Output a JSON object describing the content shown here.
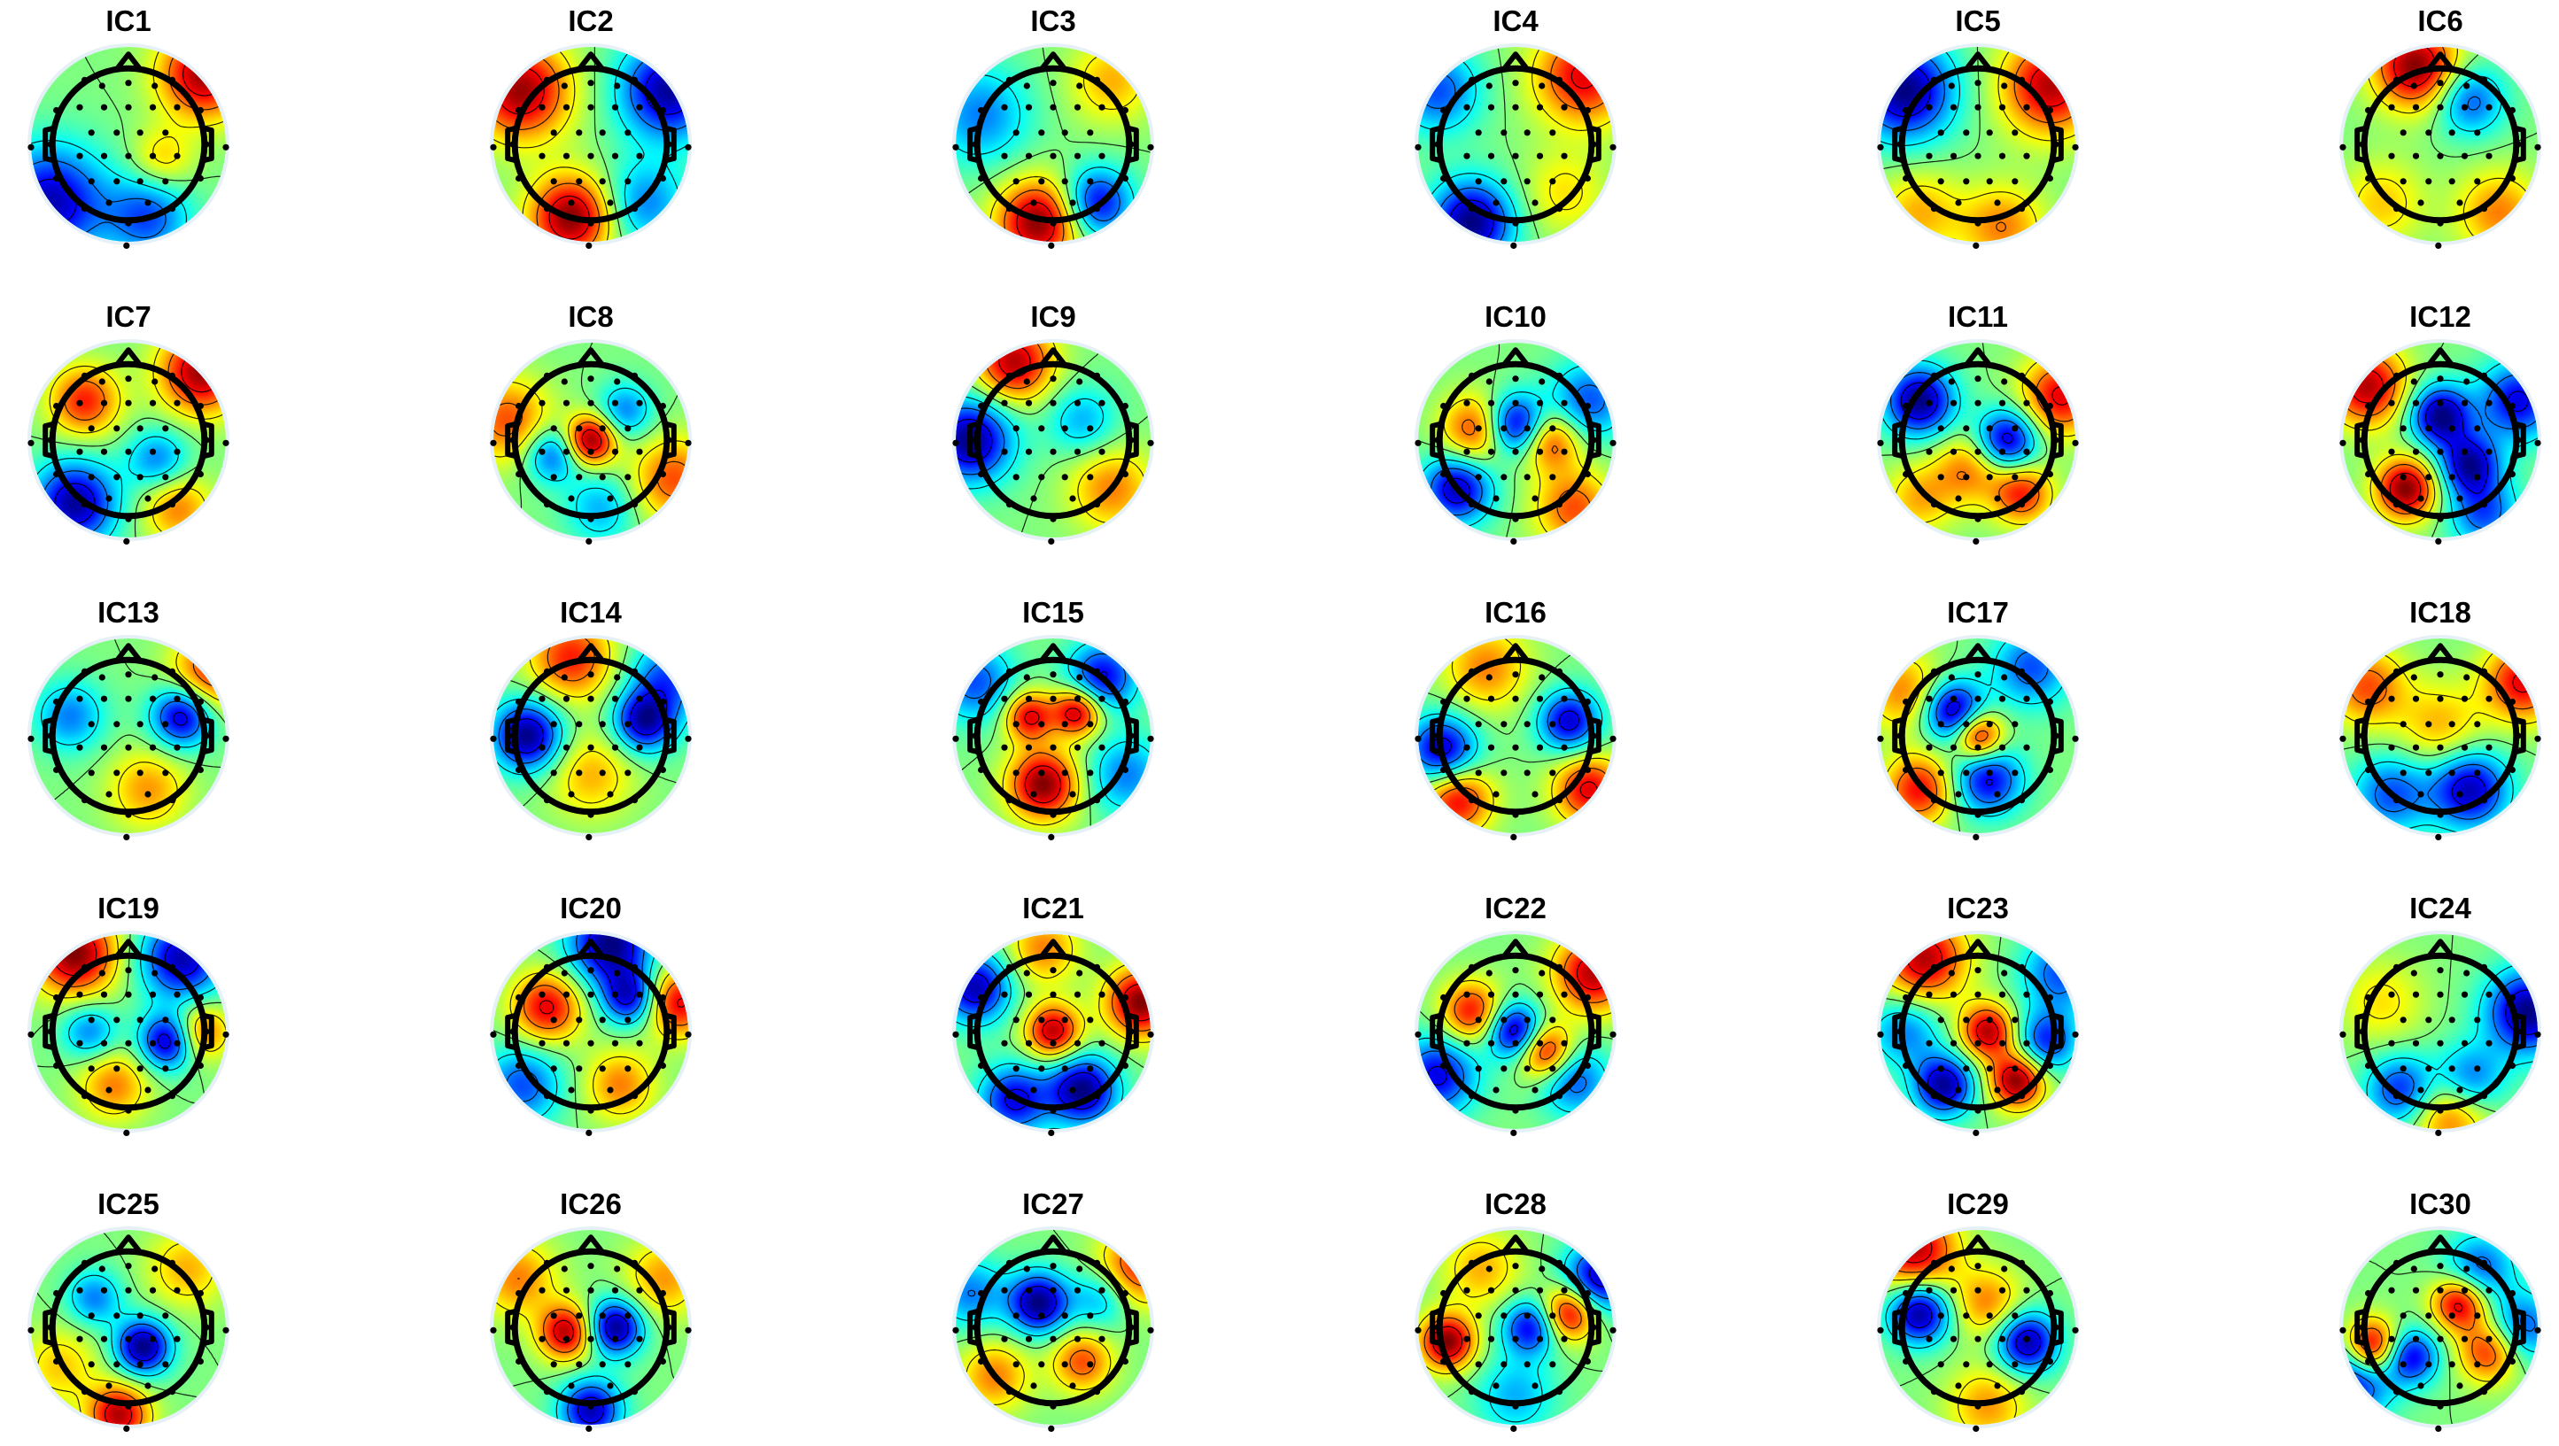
{
  "figure": {
    "components": [
      {
        "label": "IC1",
        "blobs": [
          [
            0.78,
            -0.72,
            0.95,
            0.32
          ],
          [
            0.35,
            0.15,
            0.35,
            0.22
          ],
          [
            -0.8,
            0.6,
            -0.9,
            0.4
          ],
          [
            0.2,
            0.75,
            -0.6,
            0.3
          ]
        ]
      },
      {
        "label": "IC2",
        "blobs": [
          [
            -0.72,
            -0.55,
            0.95,
            0.35
          ],
          [
            -0.2,
            0.75,
            1.0,
            0.3
          ],
          [
            0.8,
            -0.55,
            -0.95,
            0.35
          ],
          [
            0.55,
            0.6,
            -0.5,
            0.3
          ]
        ]
      },
      {
        "label": "IC3",
        "blobs": [
          [
            -0.15,
            0.8,
            1.0,
            0.3
          ],
          [
            0.45,
            0.6,
            -0.8,
            0.25
          ],
          [
            -0.75,
            -0.3,
            -0.5,
            0.35
          ],
          [
            0.6,
            -0.65,
            0.4,
            0.3
          ]
        ]
      },
      {
        "label": "IC4",
        "blobs": [
          [
            -0.45,
            0.8,
            -1.0,
            0.3
          ],
          [
            0.7,
            -0.7,
            0.8,
            0.35
          ],
          [
            -0.8,
            -0.55,
            -0.6,
            0.3
          ],
          [
            0.5,
            0.5,
            0.3,
            0.3
          ]
        ]
      },
      {
        "label": "IC5",
        "blobs": [
          [
            -0.75,
            -0.55,
            -1.0,
            0.35
          ],
          [
            0.75,
            -0.6,
            0.9,
            0.35
          ],
          [
            0.25,
            0.85,
            0.5,
            0.3
          ],
          [
            -0.6,
            0.7,
            0.4,
            0.3
          ]
        ]
      },
      {
        "label": "IC6",
        "blobs": [
          [
            -0.25,
            -0.8,
            1.0,
            0.3
          ],
          [
            0.3,
            -0.45,
            -0.6,
            0.25
          ],
          [
            0.6,
            0.7,
            0.5,
            0.3
          ],
          [
            -0.6,
            0.6,
            0.35,
            0.3
          ]
        ]
      },
      {
        "label": "IC7",
        "blobs": [
          [
            0.75,
            -0.7,
            0.95,
            0.3
          ],
          [
            -0.45,
            -0.4,
            0.7,
            0.25
          ],
          [
            -0.55,
            0.65,
            -0.95,
            0.3
          ],
          [
            0.3,
            0.2,
            -0.5,
            0.22
          ],
          [
            0.5,
            0.7,
            0.5,
            0.25
          ]
        ]
      },
      {
        "label": "IC8",
        "blobs": [
          [
            0.0,
            0.0,
            1.0,
            0.18
          ],
          [
            -0.4,
            0.15,
            -0.6,
            0.2
          ],
          [
            0.35,
            -0.3,
            -0.5,
            0.2
          ],
          [
            0.85,
            0.4,
            0.6,
            0.3
          ],
          [
            -0.85,
            -0.2,
            0.6,
            0.3
          ],
          [
            0.1,
            0.7,
            -0.4,
            0.25
          ]
        ]
      },
      {
        "label": "IC9",
        "blobs": [
          [
            -0.85,
            0.0,
            -1.0,
            0.3
          ],
          [
            -0.4,
            -0.8,
            0.9,
            0.28
          ],
          [
            0.6,
            0.5,
            0.5,
            0.3
          ],
          [
            0.3,
            -0.2,
            -0.4,
            0.25
          ]
        ]
      },
      {
        "label": "IC10",
        "blobs": [
          [
            0.0,
            -0.15,
            -1.0,
            0.22
          ],
          [
            -0.6,
            0.5,
            -0.9,
            0.25
          ],
          [
            -0.4,
            -0.1,
            0.7,
            0.25
          ],
          [
            0.35,
            0.0,
            0.7,
            0.22
          ],
          [
            0.75,
            -0.4,
            -0.6,
            0.28
          ],
          [
            0.6,
            0.7,
            0.6,
            0.28
          ]
        ]
      },
      {
        "label": "IC11",
        "blobs": [
          [
            -0.6,
            -0.4,
            -1.0,
            0.25
          ],
          [
            0.3,
            0.0,
            -0.9,
            0.22
          ],
          [
            0.85,
            -0.45,
            0.8,
            0.28
          ],
          [
            -0.1,
            0.3,
            0.5,
            0.25
          ],
          [
            0.45,
            0.55,
            0.7,
            0.22
          ],
          [
            -0.6,
            0.6,
            0.4,
            0.25
          ]
        ]
      },
      {
        "label": "IC12",
        "blobs": [
          [
            0.0,
            -0.25,
            -1.0,
            0.22
          ],
          [
            0.3,
            0.25,
            -0.9,
            0.22
          ],
          [
            -0.35,
            0.5,
            1.0,
            0.22
          ],
          [
            -0.75,
            -0.55,
            0.9,
            0.28
          ],
          [
            0.8,
            -0.4,
            -0.8,
            0.28
          ],
          [
            0.45,
            0.75,
            -0.6,
            0.25
          ]
        ]
      },
      {
        "label": "IC13",
        "blobs": [
          [
            0.55,
            -0.2,
            -0.9,
            0.22
          ],
          [
            0.85,
            -0.65,
            0.7,
            0.28
          ],
          [
            -0.6,
            -0.2,
            -0.5,
            0.25
          ],
          [
            0.2,
            0.55,
            0.45,
            0.28
          ]
        ]
      },
      {
        "label": "IC14",
        "blobs": [
          [
            -0.65,
            0.0,
            -1.0,
            0.25
          ],
          [
            0.55,
            -0.15,
            -0.9,
            0.22
          ],
          [
            -0.2,
            -0.8,
            0.7,
            0.3
          ],
          [
            0.8,
            -0.6,
            -0.6,
            0.28
          ],
          [
            0.0,
            0.4,
            0.4,
            0.3
          ]
        ]
      },
      {
        "label": "IC15",
        "blobs": [
          [
            -0.1,
            0.5,
            1.0,
            0.25
          ],
          [
            0.25,
            -0.25,
            0.95,
            0.18
          ],
          [
            -0.25,
            -0.2,
            0.8,
            0.18
          ],
          [
            0.5,
            -0.6,
            -0.8,
            0.25
          ],
          [
            -0.8,
            -0.55,
            -0.6,
            0.28
          ],
          [
            0.75,
            0.4,
            -0.5,
            0.28
          ]
        ]
      },
      {
        "label": "IC16",
        "blobs": [
          [
            -0.75,
            0.15,
            -0.9,
            0.25
          ],
          [
            0.55,
            -0.15,
            -0.85,
            0.22
          ],
          [
            -0.6,
            0.65,
            0.8,
            0.25
          ],
          [
            0.75,
            0.55,
            0.8,
            0.25
          ],
          [
            -0.3,
            -0.7,
            0.5,
            0.3
          ]
        ]
      },
      {
        "label": "IC17",
        "blobs": [
          [
            -0.25,
            -0.25,
            -1.0,
            0.22
          ],
          [
            0.0,
            0.0,
            0.95,
            0.18
          ],
          [
            0.1,
            0.45,
            -0.8,
            0.25
          ],
          [
            -0.6,
            0.55,
            0.75,
            0.25
          ],
          [
            0.55,
            -0.7,
            -0.6,
            0.28
          ],
          [
            -0.75,
            -0.45,
            0.5,
            0.28
          ]
        ]
      },
      {
        "label": "IC18",
        "blobs": [
          [
            0.3,
            0.55,
            -0.9,
            0.28
          ],
          [
            -0.5,
            0.6,
            -0.6,
            0.28
          ],
          [
            0.85,
            -0.55,
            0.8,
            0.28
          ],
          [
            -0.75,
            -0.5,
            0.6,
            0.28
          ],
          [
            0.0,
            -0.1,
            0.4,
            0.3
          ]
        ]
      },
      {
        "label": "IC19",
        "blobs": [
          [
            -0.55,
            -0.8,
            1.0,
            0.3
          ],
          [
            0.55,
            -0.75,
            -0.9,
            0.3
          ],
          [
            0.4,
            0.1,
            -0.9,
            0.2
          ],
          [
            -0.4,
            0.0,
            -0.5,
            0.2
          ],
          [
            0.75,
            0.0,
            0.6,
            0.2
          ],
          [
            -0.15,
            0.55,
            0.5,
            0.25
          ]
        ]
      },
      {
        "label": "IC20",
        "blobs": [
          [
            0.2,
            -0.9,
            -1.0,
            0.3
          ],
          [
            -0.45,
            -0.25,
            0.8,
            0.25
          ],
          [
            0.4,
            -0.35,
            -0.8,
            0.2
          ],
          [
            0.9,
            -0.3,
            0.8,
            0.25
          ],
          [
            -0.7,
            0.55,
            -0.6,
            0.28
          ],
          [
            0.3,
            0.55,
            0.5,
            0.25
          ]
        ]
      },
      {
        "label": "IC21",
        "blobs": [
          [
            0.0,
            0.0,
            0.9,
            0.2
          ],
          [
            0.3,
            0.6,
            -1.0,
            0.25
          ],
          [
            -0.4,
            0.7,
            -0.8,
            0.25
          ],
          [
            0.9,
            -0.3,
            1.0,
            0.25
          ],
          [
            -0.8,
            -0.45,
            -0.9,
            0.25
          ],
          [
            -0.1,
            -0.85,
            0.5,
            0.25
          ]
        ]
      },
      {
        "label": "IC22",
        "blobs": [
          [
            0.0,
            0.0,
            -1.0,
            0.2
          ],
          [
            0.3,
            0.2,
            0.9,
            0.2
          ],
          [
            -0.45,
            -0.2,
            0.75,
            0.22
          ],
          [
            0.8,
            -0.6,
            0.9,
            0.28
          ],
          [
            -0.8,
            0.45,
            -0.8,
            0.28
          ],
          [
            0.6,
            0.5,
            -0.6,
            0.25
          ]
        ]
      },
      {
        "label": "IC23",
        "blobs": [
          [
            0.1,
            0.0,
            0.9,
            0.2
          ],
          [
            0.4,
            0.5,
            1.0,
            0.2
          ],
          [
            -0.35,
            0.55,
            -0.95,
            0.22
          ],
          [
            0.7,
            0.1,
            -0.7,
            0.22
          ],
          [
            -0.55,
            -0.75,
            0.9,
            0.3
          ],
          [
            0.85,
            -0.6,
            -0.6,
            0.28
          ],
          [
            -0.75,
            0.0,
            -0.5,
            0.25
          ]
        ]
      },
      {
        "label": "IC24",
        "blobs": [
          [
            0.9,
            -0.2,
            -1.0,
            0.3
          ],
          [
            -0.4,
            0.6,
            -0.7,
            0.25
          ],
          [
            0.3,
            0.5,
            -0.6,
            0.25
          ],
          [
            0.1,
            0.85,
            0.6,
            0.28
          ],
          [
            -0.6,
            -0.3,
            0.3,
            0.3
          ]
        ]
      },
      {
        "label": "IC25",
        "blobs": [
          [
            0.15,
            0.2,
            -1.0,
            0.2
          ],
          [
            -0.35,
            -0.3,
            -0.5,
            0.2
          ],
          [
            -0.1,
            0.9,
            0.9,
            0.22
          ],
          [
            0.6,
            -0.6,
            0.4,
            0.28
          ],
          [
            -0.7,
            0.4,
            0.35,
            0.28
          ]
        ]
      },
      {
        "label": "IC26",
        "blobs": [
          [
            0.25,
            0.0,
            -1.0,
            0.2
          ],
          [
            -0.25,
            0.05,
            0.9,
            0.2
          ],
          [
            0.0,
            0.85,
            -0.9,
            0.22
          ],
          [
            -0.75,
            -0.5,
            0.5,
            0.28
          ],
          [
            0.75,
            -0.5,
            0.45,
            0.28
          ]
        ]
      },
      {
        "label": "IC27",
        "blobs": [
          [
            -0.15,
            -0.25,
            -1.0,
            0.22
          ],
          [
            0.3,
            0.35,
            0.6,
            0.22
          ],
          [
            -0.6,
            0.5,
            0.5,
            0.25
          ],
          [
            0.85,
            -0.6,
            0.7,
            0.28
          ],
          [
            -0.85,
            -0.35,
            -0.5,
            0.25
          ],
          [
            0.5,
            -0.3,
            -0.45,
            0.22
          ]
        ]
      },
      {
        "label": "IC28",
        "blobs": [
          [
            -0.7,
            0.15,
            1.0,
            0.2
          ],
          [
            0.55,
            -0.15,
            0.9,
            0.2
          ],
          [
            0.85,
            -0.5,
            -0.9,
            0.25
          ],
          [
            0.15,
            0.0,
            -0.8,
            0.2
          ],
          [
            0.0,
            0.7,
            -0.4,
            0.28
          ],
          [
            -0.35,
            -0.6,
            0.4,
            0.28
          ]
        ]
      },
      {
        "label": "IC29",
        "blobs": [
          [
            -0.6,
            -0.15,
            -1.0,
            0.22
          ],
          [
            0.5,
            0.15,
            -0.95,
            0.22
          ],
          [
            -0.65,
            -0.8,
            0.9,
            0.3
          ],
          [
            0.1,
            -0.25,
            0.5,
            0.25
          ],
          [
            0.1,
            0.8,
            0.45,
            0.28
          ]
        ]
      },
      {
        "label": "IC30",
        "blobs": [
          [
            -0.7,
            0.2,
            1.0,
            0.2
          ],
          [
            0.2,
            -0.25,
            0.9,
            0.2
          ],
          [
            -0.3,
            0.3,
            -0.8,
            0.2
          ],
          [
            0.5,
            0.25,
            0.7,
            0.22
          ],
          [
            0.4,
            -0.6,
            -0.6,
            0.25
          ],
          [
            -0.9,
            0.55,
            -0.8,
            0.28
          ],
          [
            0.85,
            0.0,
            -0.6,
            0.25
          ]
        ]
      }
    ],
    "electrodes": [
      [
        0.0,
        -0.63
      ],
      [
        -0.27,
        -0.6
      ],
      [
        0.27,
        -0.6
      ],
      [
        -0.5,
        -0.38
      ],
      [
        -0.25,
        -0.38
      ],
      [
        0.0,
        -0.38
      ],
      [
        0.25,
        -0.38
      ],
      [
        0.5,
        -0.38
      ],
      [
        -0.38,
        -0.12
      ],
      [
        -0.12,
        -0.12
      ],
      [
        0.12,
        -0.12
      ],
      [
        0.38,
        -0.12
      ],
      [
        -0.5,
        0.12
      ],
      [
        -0.25,
        0.12
      ],
      [
        0.0,
        0.12
      ],
      [
        0.25,
        0.12
      ],
      [
        0.5,
        0.12
      ],
      [
        -0.38,
        0.38
      ],
      [
        -0.12,
        0.38
      ],
      [
        0.12,
        0.38
      ],
      [
        0.38,
        0.38
      ],
      [
        -0.2,
        0.6
      ],
      [
        0.2,
        0.6
      ],
      [
        -0.45,
        -0.66
      ],
      [
        0.45,
        -0.66
      ],
      [
        -0.74,
        -0.35
      ],
      [
        0.74,
        -0.35
      ],
      [
        -0.8,
        0.0
      ],
      [
        0.8,
        0.0
      ],
      [
        -0.74,
        0.35
      ],
      [
        0.74,
        0.35
      ],
      [
        -0.45,
        0.66
      ],
      [
        0.45,
        0.66
      ],
      [
        0.0,
        0.81
      ],
      [
        -1.0,
        0.03
      ],
      [
        1.0,
        0.03
      ],
      [
        -0.02,
        1.04
      ]
    ]
  }
}
